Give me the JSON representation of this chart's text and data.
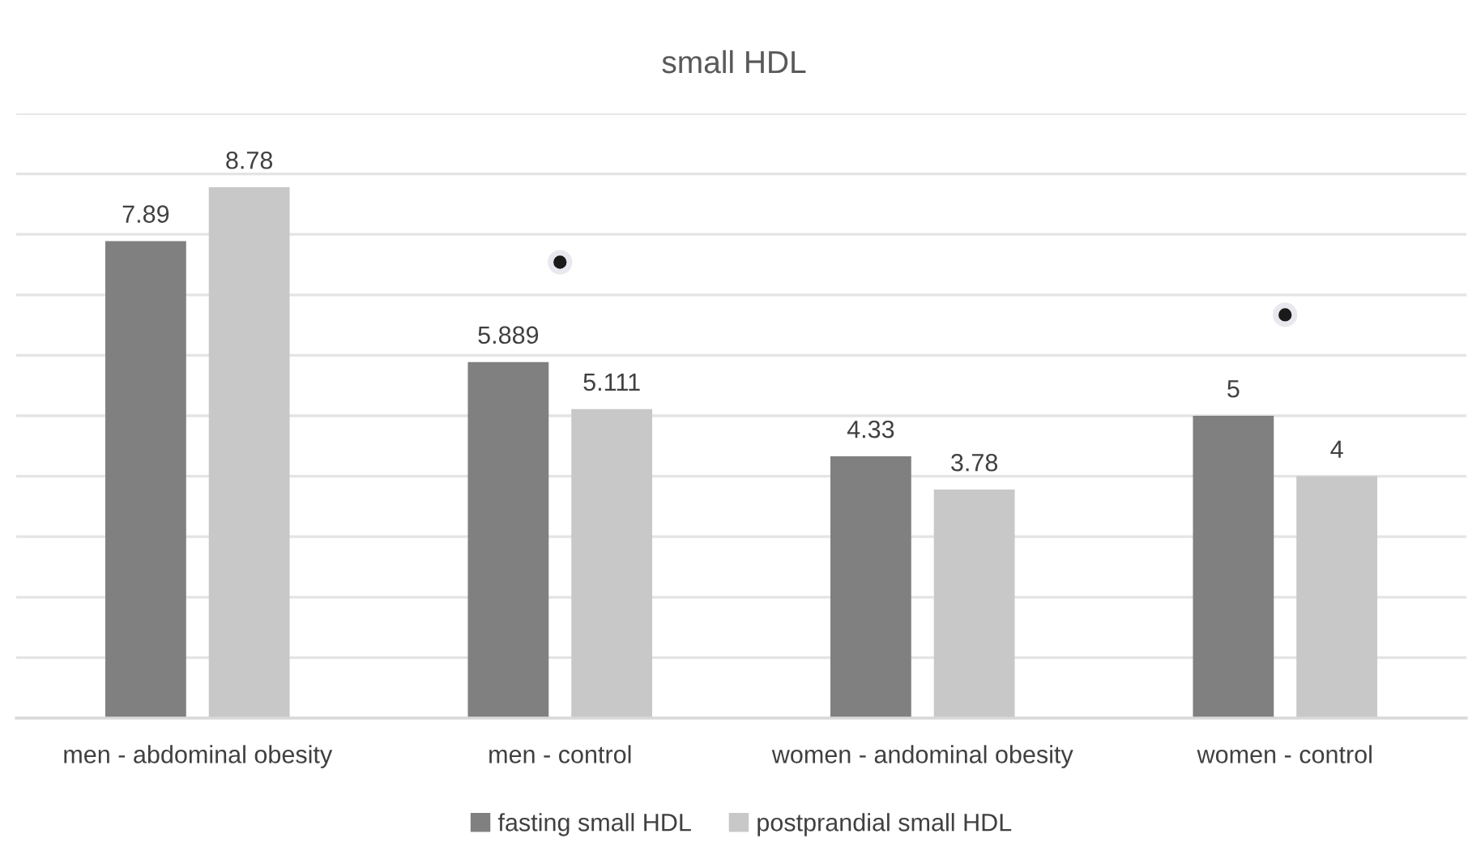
{
  "chart_data": {
    "type": "bar",
    "title": "small HDL",
    "categories": [
      "men - abdominal obesity",
      "men - control",
      "women - andominal obesity",
      "women - control"
    ],
    "series": [
      {
        "name": "fasting small HDL",
        "color": "#808080",
        "values": [
          7.89,
          5.889,
          4.33,
          5
        ],
        "value_labels": [
          "7.89",
          "5.889",
          "4.33",
          "5"
        ]
      },
      {
        "name": "postprandial small HDL",
        "color": "#c8c8c8",
        "values": [
          8.78,
          5.111,
          3.78,
          4
        ],
        "value_labels": [
          "8.78",
          "5.111",
          "3.78",
          "4"
        ]
      },
      {
        "type": "scatter",
        "color": "#1a1a1a",
        "marker": "circle",
        "x": [
          "men - control",
          "women - control"
        ],
        "values": [
          7.54,
          6.67
        ]
      }
    ],
    "ylim": [
      0,
      10
    ],
    "yticks": [
      {
        "value": 0,
        "label": null
      },
      {
        "value": 1,
        "label": null
      },
      {
        "value": 2,
        "label": null
      },
      {
        "value": 3,
        "label": null
      },
      {
        "value": 4,
        "label": null
      },
      {
        "value": 5,
        "label": null
      },
      {
        "value": 6,
        "label": null
      },
      {
        "value": 7,
        "label": null
      },
      {
        "value": 8,
        "label": null
      },
      {
        "value": 9,
        "label": null
      },
      {
        "value": 10,
        "label": null
      }
    ],
    "tick_labels": "x",
    "grid": "y",
    "legend": "bottom"
  }
}
